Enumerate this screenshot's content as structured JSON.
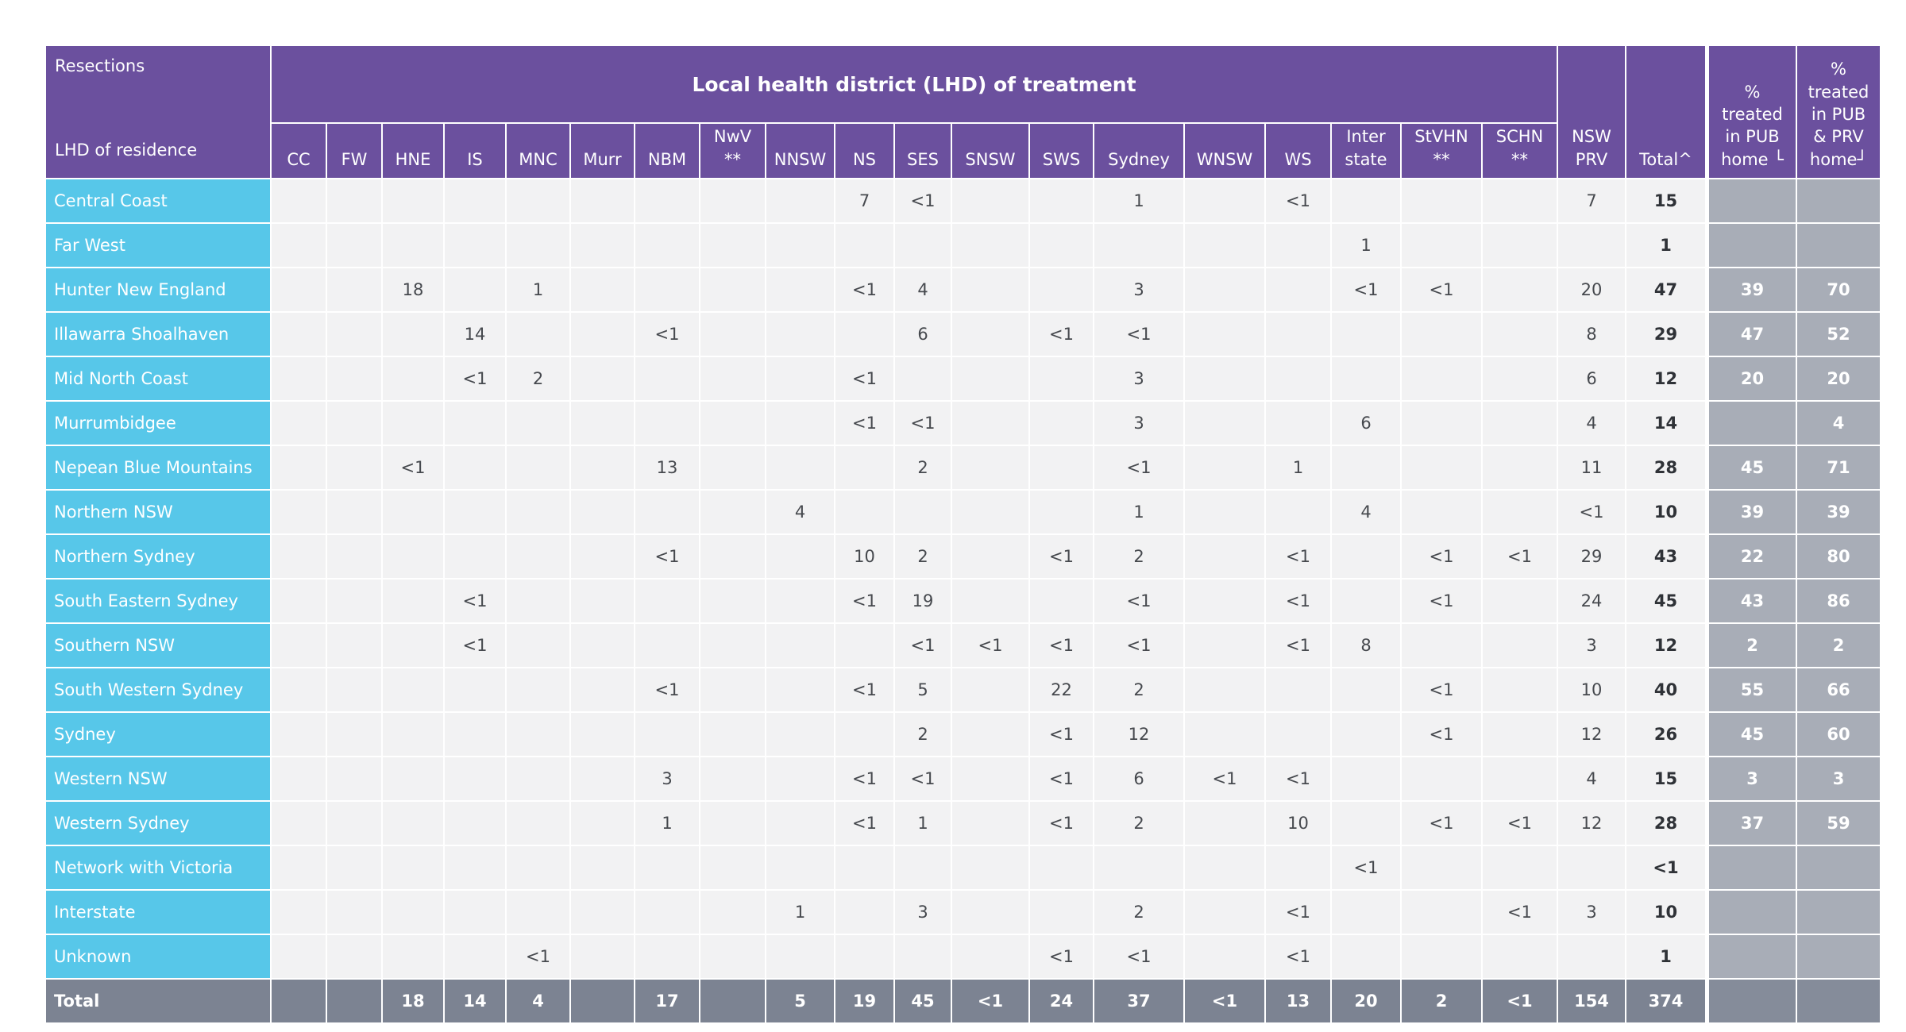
{
  "chart_data": {
    "type": "table",
    "title": "Resections",
    "row_dimension": "LHD of residence",
    "column_group": "Local health district (LHD) of treatment",
    "treatment_columns": [
      {
        "key": "CC",
        "lines": [
          "CC"
        ]
      },
      {
        "key": "FW",
        "lines": [
          "FW"
        ]
      },
      {
        "key": "HNE",
        "lines": [
          "HNE"
        ]
      },
      {
        "key": "IS",
        "lines": [
          "IS"
        ]
      },
      {
        "key": "MNC",
        "lines": [
          "MNC"
        ]
      },
      {
        "key": "Murr",
        "lines": [
          "Murr"
        ]
      },
      {
        "key": "NBM",
        "lines": [
          "NBM"
        ]
      },
      {
        "key": "NwV",
        "lines": [
          "NwV",
          "**"
        ]
      },
      {
        "key": "NNSW",
        "lines": [
          "NNSW"
        ]
      },
      {
        "key": "NS",
        "lines": [
          "NS"
        ]
      },
      {
        "key": "SES",
        "lines": [
          "SES"
        ]
      },
      {
        "key": "SNSW",
        "lines": [
          "SNSW"
        ]
      },
      {
        "key": "SWS",
        "lines": [
          "SWS"
        ]
      },
      {
        "key": "Sydney",
        "lines": [
          "Sydney"
        ]
      },
      {
        "key": "WNSW",
        "lines": [
          "WNSW"
        ]
      },
      {
        "key": "WS",
        "lines": [
          "WS"
        ]
      },
      {
        "key": "Interstate",
        "lines": [
          "Inter",
          "state"
        ]
      },
      {
        "key": "StVHN",
        "lines": [
          "StVHN",
          "**"
        ]
      },
      {
        "key": "SCHN",
        "lines": [
          "SCHN",
          "**"
        ]
      }
    ],
    "right_columns": [
      {
        "key": "NSW PRV",
        "lines": [
          "NSW",
          "PRV"
        ]
      },
      {
        "key": "Total",
        "lines": [
          "Total^"
        ]
      }
    ],
    "pct_columns": [
      {
        "key": "pct_pub",
        "lines": [
          "%",
          "treated",
          "in PUB",
          "home └"
        ]
      },
      {
        "key": "pct_pub_prv",
        "lines": [
          "%",
          "treated",
          "in PUB",
          "& PRV",
          "home┘"
        ]
      }
    ],
    "rows": [
      {
        "label": "Central Coast",
        "values": [
          "",
          "",
          "",
          "",
          "",
          "",
          "",
          "",
          "",
          "7",
          "<1",
          "",
          "",
          "1",
          "",
          "<1",
          "",
          "",
          "",
          "7",
          "15"
        ],
        "pct": [
          "",
          ""
        ]
      },
      {
        "label": "Far West",
        "values": [
          "",
          "",
          "",
          "",
          "",
          "",
          "",
          "",
          "",
          "",
          "",
          "",
          "",
          "",
          "",
          "",
          "1",
          "",
          "",
          "",
          "1"
        ],
        "pct": [
          "",
          ""
        ]
      },
      {
        "label": "Hunter New England",
        "values": [
          "",
          "",
          "18",
          "",
          "1",
          "",
          "",
          "",
          "",
          "<1",
          "4",
          "",
          "",
          "3",
          "",
          "",
          "<1",
          "<1",
          "",
          "20",
          "47"
        ],
        "pct": [
          "39",
          "70"
        ]
      },
      {
        "label": "Illawarra Shoalhaven",
        "values": [
          "",
          "",
          "",
          "14",
          "",
          "",
          "<1",
          "",
          "",
          "",
          "6",
          "",
          "<1",
          "<1",
          "",
          "",
          "",
          "",
          "",
          "8",
          "29"
        ],
        "pct": [
          "47",
          "52"
        ]
      },
      {
        "label": "Mid North Coast",
        "values": [
          "",
          "",
          "",
          "<1",
          "2",
          "",
          "",
          "",
          "",
          "<1",
          "",
          "",
          "",
          "3",
          "",
          "",
          "",
          "",
          "",
          "6",
          "12"
        ],
        "pct": [
          "20",
          "20"
        ]
      },
      {
        "label": "Murrumbidgee",
        "values": [
          "",
          "",
          "",
          "",
          "",
          "",
          "",
          "",
          "",
          "<1",
          "<1",
          "",
          "",
          "3",
          "",
          "",
          "6",
          "",
          "",
          "4",
          "14"
        ],
        "pct": [
          "",
          "4"
        ]
      },
      {
        "label": "Nepean Blue Mountains",
        "values": [
          "",
          "",
          "<1",
          "",
          "",
          "",
          "13",
          "",
          "",
          "",
          "2",
          "",
          "",
          "<1",
          "",
          "1",
          "",
          "",
          "",
          "11",
          "28"
        ],
        "pct": [
          "45",
          "71"
        ]
      },
      {
        "label": "Northern NSW",
        "values": [
          "",
          "",
          "",
          "",
          "",
          "",
          "",
          "",
          "4",
          "",
          "",
          "",
          "",
          "1",
          "",
          "",
          "4",
          "",
          "",
          "<1",
          "10"
        ],
        "pct": [
          "39",
          "39"
        ]
      },
      {
        "label": "Northern Sydney",
        "values": [
          "",
          "",
          "",
          "",
          "",
          "",
          "<1",
          "",
          "",
          "10",
          "2",
          "",
          "<1",
          "2",
          "",
          "<1",
          "",
          "<1",
          "<1",
          "29",
          "43"
        ],
        "pct": [
          "22",
          "80"
        ]
      },
      {
        "label": "South Eastern Sydney",
        "values": [
          "",
          "",
          "",
          "<1",
          "",
          "",
          "",
          "",
          "",
          "<1",
          "19",
          "",
          "",
          "<1",
          "",
          "<1",
          "",
          "<1",
          "",
          "24",
          "45"
        ],
        "pct": [
          "43",
          "86"
        ]
      },
      {
        "label": "Southern NSW",
        "values": [
          "",
          "",
          "",
          "<1",
          "",
          "",
          "",
          "",
          "",
          "",
          "<1",
          "<1",
          "<1",
          "<1",
          "",
          "<1",
          "8",
          "",
          "",
          "3",
          "12"
        ],
        "pct": [
          "2",
          "2"
        ]
      },
      {
        "label": "South Western Sydney",
        "values": [
          "",
          "",
          "",
          "",
          "",
          "",
          "<1",
          "",
          "",
          "<1",
          "5",
          "",
          "22",
          "2",
          "",
          "",
          "",
          "<1",
          "",
          "10",
          "40"
        ],
        "pct": [
          "55",
          "66"
        ]
      },
      {
        "label": "Sydney",
        "values": [
          "",
          "",
          "",
          "",
          "",
          "",
          "",
          "",
          "",
          "",
          "2",
          "",
          "<1",
          "12",
          "",
          "",
          "",
          "<1",
          "",
          "12",
          "26"
        ],
        "pct": [
          "45",
          "60"
        ]
      },
      {
        "label": "Western NSW",
        "values": [
          "",
          "",
          "",
          "",
          "",
          "",
          "3",
          "",
          "",
          "<1",
          "<1",
          "",
          "<1",
          "6",
          "<1",
          "<1",
          "",
          "",
          "",
          "4",
          "15"
        ],
        "pct": [
          "3",
          "3"
        ]
      },
      {
        "label": "Western Sydney",
        "values": [
          "",
          "",
          "",
          "",
          "",
          "",
          "1",
          "",
          "",
          "<1",
          "1",
          "",
          "<1",
          "2",
          "",
          "10",
          "",
          "<1",
          "<1",
          "12",
          "28"
        ],
        "pct": [
          "37",
          "59"
        ]
      },
      {
        "label": "Network with Victoria",
        "values": [
          "",
          "",
          "",
          "",
          "",
          "",
          "",
          "",
          "",
          "",
          "",
          "",
          "",
          "",
          "",
          "",
          "<1",
          "",
          "",
          "",
          "<1"
        ],
        "pct": [
          "",
          ""
        ]
      },
      {
        "label": "Interstate",
        "values": [
          "",
          "",
          "",
          "",
          "",
          "",
          "",
          "",
          "1",
          "",
          "3",
          "",
          "",
          "2",
          "",
          "<1",
          "",
          "",
          "<1",
          "3",
          "10"
        ],
        "pct": [
          "",
          ""
        ]
      },
      {
        "label": "Unknown",
        "values": [
          "",
          "",
          "",
          "",
          "<1",
          "",
          "",
          "",
          "",
          "",
          "",
          "",
          "<1",
          "<1",
          "",
          "<1",
          "",
          "",
          "",
          "",
          "1"
        ],
        "pct": [
          "",
          ""
        ]
      }
    ],
    "total_row": {
      "label": "Total",
      "values": [
        "",
        "",
        "18",
        "14",
        "4",
        "",
        "17",
        "",
        "5",
        "19",
        "45",
        "<1",
        "24",
        "37",
        "<1",
        "13",
        "20",
        "2",
        "<1",
        "154",
        "374"
      ],
      "pct": [
        "",
        ""
      ]
    }
  },
  "colors": {
    "header_purple": "#6b509e",
    "row_label_cyan": "#57c7e9",
    "data_cell_bg": "#f2f2f3",
    "pct_cell_gray": "#a8adb7",
    "total_row_gray": "#7c8392",
    "total_pct_gray": "#858c9a",
    "grid_white": "#ffffff",
    "data_text": "#46494e"
  }
}
